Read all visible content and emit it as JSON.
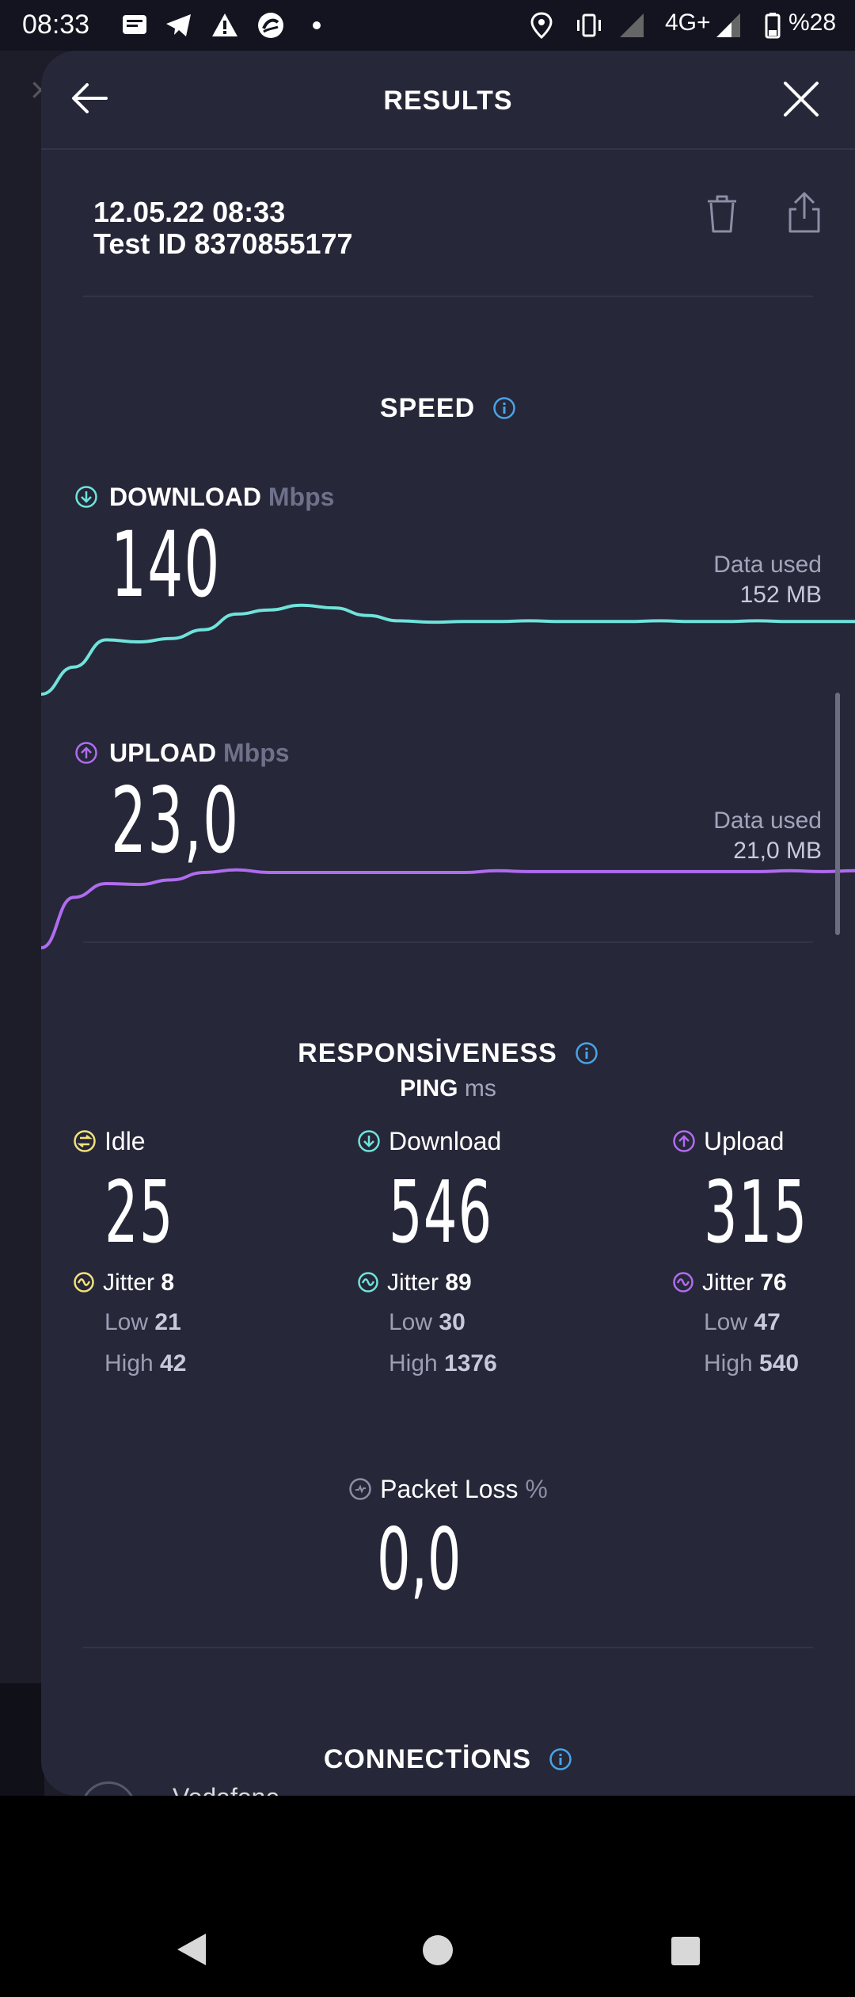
{
  "status_bar": {
    "time": "08:33",
    "network": "4G+",
    "battery": "%28",
    "icons": [
      "message-icon",
      "telegram-icon",
      "warning-icon",
      "carrier-logo-icon",
      "dot-icon",
      "location-icon",
      "vibrate-icon",
      "signal-icon",
      "battery-icon"
    ]
  },
  "header": {
    "title": "RESULTS",
    "back_icon": "arrow-left-icon",
    "close_icon": "close-icon"
  },
  "test": {
    "datetime": "12.05.22 08:33",
    "test_id": "Test ID 8370855177"
  },
  "speed": {
    "title": "SPEED",
    "download": {
      "label": "DOWNLOAD",
      "unit": "Mbps",
      "value": "140",
      "data_used_label": "Data used",
      "data_used": "152 MB",
      "color": "#6fe3dc"
    },
    "upload": {
      "label": "UPLOAD",
      "unit": "Mbps",
      "value": "23,0",
      "data_used_label": "Data used",
      "data_used": "21,0 MB",
      "color": "#b06cf0"
    }
  },
  "responsiveness": {
    "title": "RESPONSİVENESS",
    "ping_label": "PING",
    "ping_unit": "ms",
    "idle": {
      "label": "Idle",
      "value": "25",
      "jitter_label": "Jitter",
      "jitter": "8",
      "low_label": "Low",
      "low": "21",
      "high_label": "High",
      "high": "42",
      "color": "#f3e17c"
    },
    "download": {
      "label": "Download",
      "value": "546",
      "jitter_label": "Jitter",
      "jitter": "89",
      "low_label": "Low",
      "low": "30",
      "high_label": "High",
      "high": "1376",
      "color": "#6fe3dc"
    },
    "upload": {
      "label": "Upload",
      "value": "315",
      "jitter_label": "Jitter",
      "jitter": "76",
      "low_label": "Low",
      "low": "47",
      "high_label": "High",
      "high": "540",
      "color": "#b06cf0"
    },
    "packet_loss": {
      "label": "Packet Loss",
      "unit": "%",
      "value": "0,0"
    }
  },
  "connections": {
    "title": "CONNECTİONS",
    "provider": "Vodafone"
  },
  "accent": "#4aa3e6",
  "chart_data": [
    {
      "type": "line",
      "series": [
        {
          "name": "DOWNLOAD",
          "values": [
            0,
            40,
            80,
            77,
            82,
            95,
            118,
            124,
            131,
            127,
            116,
            108,
            106,
            107,
            107,
            108,
            107,
            107,
            107,
            108,
            107,
            107,
            108,
            107,
            107,
            107
          ]
        }
      ]
    },
    {
      "type": "line",
      "series": [
        {
          "name": "UPLOAD",
          "values": [
            0,
            55,
            70,
            69,
            74,
            82,
            85,
            82,
            82,
            82,
            82,
            82,
            82,
            82,
            84,
            83,
            83,
            83,
            83,
            83,
            83,
            83,
            83,
            84,
            83,
            84
          ]
        }
      ]
    }
  ]
}
